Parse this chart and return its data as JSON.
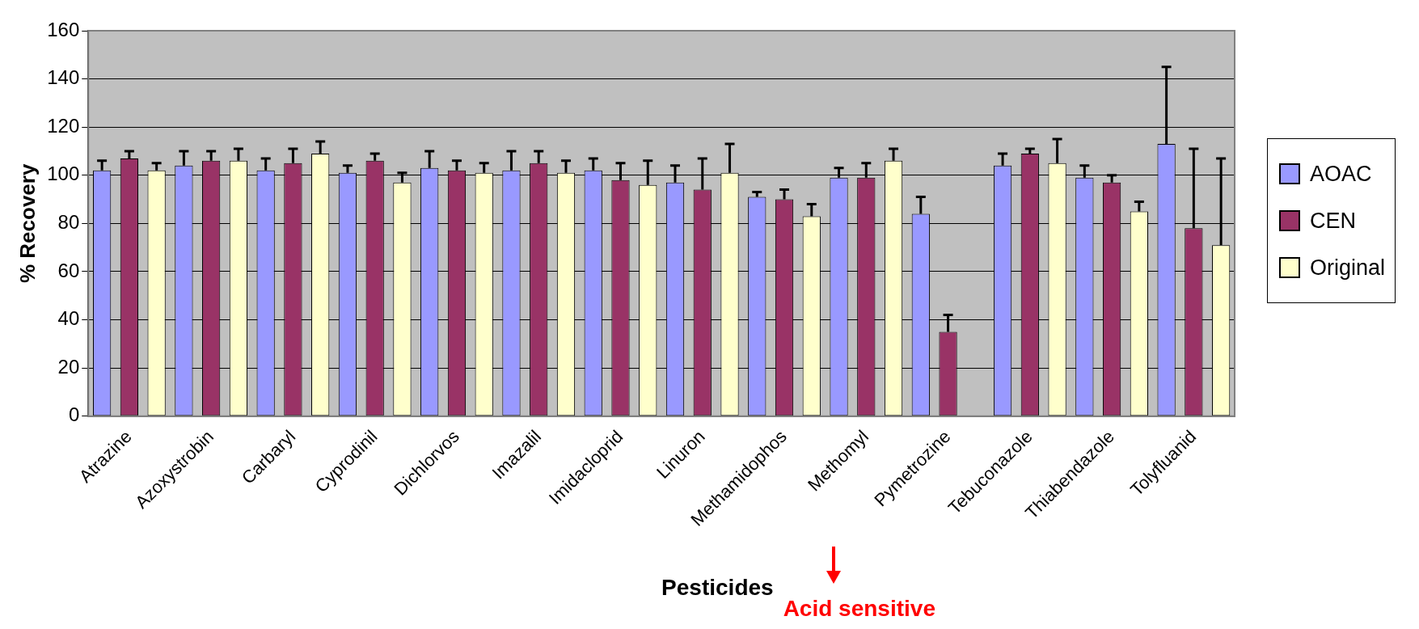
{
  "chart_data": {
    "type": "bar",
    "xlabel": "Pesticides",
    "ylabel": "% Recovery",
    "annotations": [
      "Acid sensitive"
    ],
    "categories": [
      "Atrazine",
      "Azoxystrobin",
      "Carbaryl",
      "Cyprodinil",
      "Dichlorvos",
      "Imazalil",
      "Imidacloprid",
      "Linuron",
      "Methamidophos",
      "Methomyl",
      "Pymetrozine",
      "Tebuconazole",
      "Thiabendazole",
      "Tolyfluanid"
    ],
    "series": [
      {
        "name": "AOAC",
        "color": "#9999ff",
        "values": [
          102,
          104,
          102,
          101,
          103,
          102,
          102,
          97,
          91,
          99,
          84,
          104,
          99,
          113
        ],
        "errors": [
          [
            102,
            106
          ],
          [
            104,
            110
          ],
          [
            102,
            107
          ],
          [
            101,
            104
          ],
          [
            103,
            110
          ],
          [
            102,
            110
          ],
          [
            102,
            107
          ],
          [
            97,
            104
          ],
          [
            91,
            93
          ],
          [
            99,
            103
          ],
          [
            84,
            91
          ],
          [
            104,
            109
          ],
          [
            99,
            104
          ],
          [
            113,
            145
          ]
        ]
      },
      {
        "name": "CEN",
        "color": "#993366",
        "values": [
          107,
          106,
          105,
          106,
          102,
          105,
          98,
          94,
          90,
          99,
          35,
          109,
          97,
          78
        ],
        "errors": [
          [
            107,
            110
          ],
          [
            106,
            110
          ],
          [
            105,
            111
          ],
          [
            106,
            109
          ],
          [
            102,
            106
          ],
          [
            105,
            110
          ],
          [
            98,
            105
          ],
          [
            94,
            107
          ],
          [
            90,
            94
          ],
          [
            99,
            105
          ],
          [
            35,
            42
          ],
          [
            109,
            111
          ],
          [
            97,
            100
          ],
          [
            78,
            111
          ]
        ]
      },
      {
        "name": "Original",
        "color": "#ffffcc",
        "values": [
          102,
          106,
          109,
          97,
          101,
          101,
          96,
          101,
          83,
          106,
          0,
          105,
          85,
          71
        ],
        "errors": [
          [
            102,
            105
          ],
          [
            106,
            111
          ],
          [
            109,
            114
          ],
          [
            97,
            101
          ],
          [
            101,
            105
          ],
          [
            101,
            106
          ],
          [
            96,
            106
          ],
          [
            101,
            113
          ],
          [
            83,
            88
          ],
          [
            106,
            111
          ],
          null,
          [
            105,
            115
          ],
          [
            85,
            89
          ],
          [
            71,
            107
          ]
        ]
      }
    ],
    "ylim": [
      0,
      160
    ],
    "yticks": [
      0,
      20,
      40,
      60,
      80,
      100,
      120,
      140,
      160
    ],
    "grid": "y",
    "legend": "right"
  }
}
